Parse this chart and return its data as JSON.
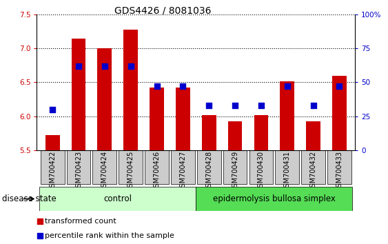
{
  "title": "GDS4426 / 8081036",
  "samples": [
    "GSM700422",
    "GSM700423",
    "GSM700424",
    "GSM700425",
    "GSM700426",
    "GSM700427",
    "GSM700428",
    "GSM700429",
    "GSM700430",
    "GSM700431",
    "GSM700432",
    "GSM700433"
  ],
  "transformed_counts": [
    5.72,
    7.15,
    7.0,
    7.28,
    6.42,
    6.42,
    6.02,
    5.92,
    6.02,
    6.52,
    5.92,
    6.6
  ],
  "percentile_ranks": [
    30,
    62,
    62,
    62,
    47,
    47,
    33,
    33,
    33,
    47,
    33,
    47
  ],
  "bar_bottom": 5.5,
  "ylim_left": [
    5.5,
    7.5
  ],
  "ylim_right": [
    0,
    100
  ],
  "yticks_left": [
    5.5,
    6.0,
    6.5,
    7.0,
    7.5
  ],
  "yticks_right": [
    0,
    25,
    50,
    75,
    100
  ],
  "yticklabels_right": [
    "0",
    "25",
    "50",
    "75",
    "100%"
  ],
  "bar_color": "#cc0000",
  "dot_color": "#0000cc",
  "control_label": "control",
  "ebs_label": "epidermolysis bullosa simplex",
  "disease_state_label": "disease state",
  "legend_bar_label": "transformed count",
  "legend_dot_label": "percentile rank within the sample",
  "control_bg": "#ccffcc",
  "ebs_bg": "#55dd55",
  "xlabel_bg": "#cccccc",
  "bar_width": 0.55,
  "dot_size": 30,
  "fontsize_title": 10,
  "fontsize_ticks": 7.5,
  "fontsize_labels": 7,
  "fontsize_legend": 8,
  "fontsize_group": 8.5,
  "fontsize_disease": 8.5
}
